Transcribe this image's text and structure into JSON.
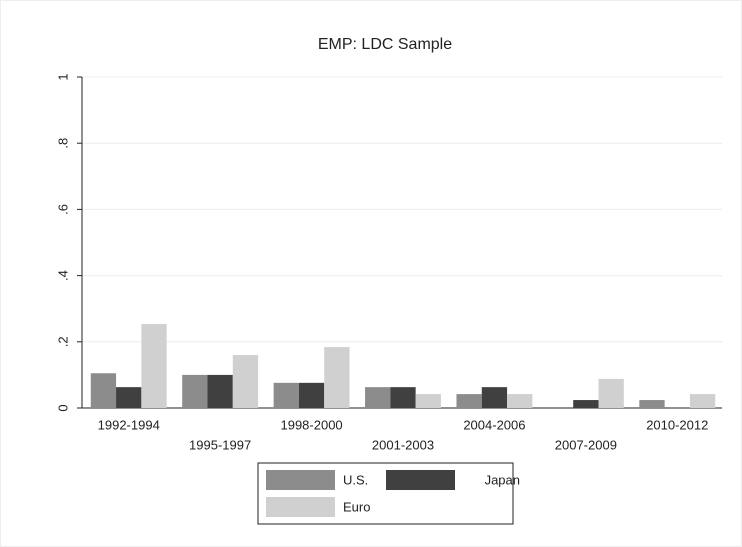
{
  "chart_data": {
    "type": "bar",
    "title": "EMP: LDC Sample",
    "categories": [
      "1992-1994",
      "1995-1997",
      "1998-2000",
      "2001-2003",
      "2004-2006",
      "2007-2009",
      "2010-2012"
    ],
    "series": [
      {
        "name": "U.S.",
        "color": "#8c8c8c",
        "values": [
          0.105,
          0.1,
          0.076,
          0.063,
          0.042,
          0,
          0.024
        ]
      },
      {
        "name": "Japan",
        "color": "#404040",
        "values": [
          0.063,
          0.1,
          0.076,
          0.063,
          0.063,
          0.024,
          0
        ]
      },
      {
        "name": "Euro",
        "color": "#d0d0d0",
        "values": [
          0.254,
          0.16,
          0.184,
          0.042,
          0.042,
          0.088,
          0.042
        ]
      }
    ],
    "ylim": [
      0,
      1
    ],
    "yticks": [
      0,
      {
        "value": 0.2,
        "label": ".2"
      },
      {
        "value": 0.4,
        "label": ".4"
      },
      {
        "value": 0.6,
        "label": ".6"
      },
      {
        "value": 0.8,
        "label": ".8"
      },
      1
    ],
    "grid": true,
    "legend": "bottom"
  }
}
